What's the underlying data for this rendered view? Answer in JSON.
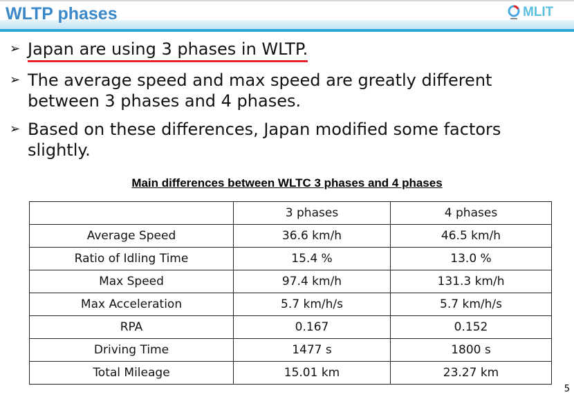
{
  "header": {
    "title": "WLTP phases",
    "logo_text": "MLIT"
  },
  "bullets": [
    "Japan are using 3 phases in WLTP.",
    "The average speed and max speed are greatly different between 3 phases and 4 phases.",
    "Based on these differences, Japan modified some factors slightly."
  ],
  "table": {
    "caption": "Main differences between WLTC 3 phases and 4 phases",
    "headers": [
      "",
      "3 phases",
      "4 phases"
    ],
    "rows": [
      [
        "Average Speed",
        "36.6 km/h",
        "46.5 km/h"
      ],
      [
        "Ratio of Idling Time",
        "15.4 %",
        "13.0 %"
      ],
      [
        "Max Speed",
        "97.4 km/h",
        "131.3 km/h"
      ],
      [
        "Max Acceleration",
        "5.7 km/h/s",
        "5.7 km/h/s"
      ],
      [
        "RPA",
        "0.167",
        "0.152"
      ],
      [
        "Driving Time",
        "1477 s",
        "1800 s"
      ],
      [
        "Total Mileage",
        "15.01 km",
        "23.27 km"
      ]
    ]
  },
  "page_number": "5",
  "colors": {
    "title": "#3a88c8",
    "rule": "#2aa6d6",
    "underline": "#e8202a"
  }
}
